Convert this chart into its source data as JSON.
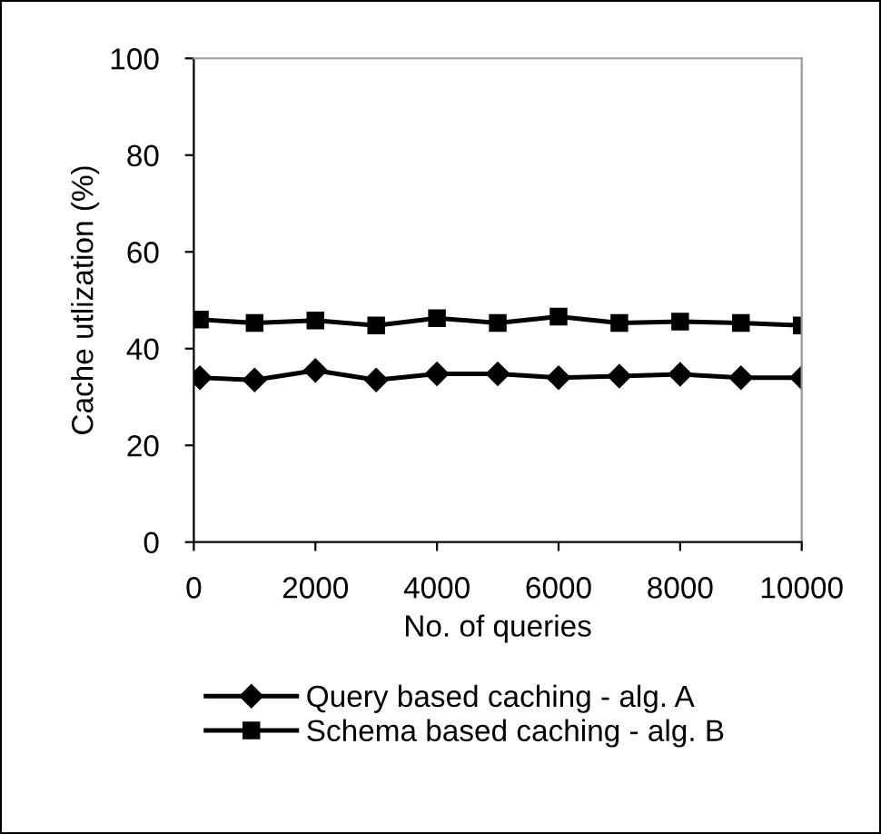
{
  "chart_data": {
    "type": "line",
    "xlabel": "No. of queries",
    "ylabel": "Cache utlization (%)",
    "x": [
      100,
      1000,
      2000,
      3000,
      4000,
      5000,
      6000,
      7000,
      8000,
      9000,
      10000
    ],
    "series": [
      {
        "name": "Query based caching - alg. A",
        "color": "#000000",
        "marker": "diamond",
        "values": [
          34,
          33.5,
          35.5,
          33.5,
          34.8,
          34.8,
          34,
          34.3,
          34.7,
          34,
          34
        ]
      },
      {
        "name": "Schema based caching - alg. B",
        "color": "#000000",
        "marker": "square",
        "values": [
          46,
          45.3,
          45.8,
          44.8,
          46.3,
          45.3,
          46.6,
          45.3,
          45.6,
          45.3,
          44.8
        ]
      }
    ],
    "xlim": [
      0,
      10000
    ],
    "xticks": [
      0,
      2000,
      4000,
      6000,
      8000,
      10000
    ],
    "ylim": [
      0,
      100
    ],
    "yticks": [
      0,
      20,
      40,
      60,
      80,
      100
    ],
    "grid": false,
    "legend": "bottom",
    "line_style": "solid"
  }
}
